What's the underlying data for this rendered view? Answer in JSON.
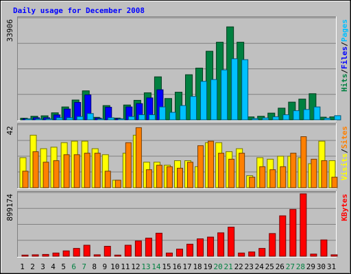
{
  "chart_data": {
    "type": "bar",
    "title": "Daily usage for December 2008",
    "days": [
      "1",
      "2",
      "3",
      "4",
      "5",
      "6",
      "7",
      "8",
      "9",
      "10",
      "11",
      "12",
      "13",
      "14",
      "15",
      "16",
      "17",
      "18",
      "19",
      "20",
      "21",
      "22",
      "23",
      "24",
      "25",
      "26",
      "27",
      "28",
      "29",
      "30",
      "31"
    ],
    "weekend_days": [
      "6",
      "7",
      "13",
      "14",
      "20",
      "21",
      "27",
      "28"
    ],
    "panels": [
      {
        "id": "hits_files_pages",
        "max_label": "33906",
        "ylim": [
          0,
          33906
        ],
        "legend": [
          {
            "text": "Pages",
            "color": "#00c0ff"
          },
          {
            "text": "/",
            "color": "#000000"
          },
          {
            "text": "Files",
            "color": "#0000ff"
          },
          {
            "text": "/",
            "color": "#000000"
          },
          {
            "text": "Hits",
            "color": "#008040"
          }
        ],
        "series": [
          {
            "name": "Hits",
            "color": "#008040",
            "values": [
              550,
              1200,
              1350,
              2350,
              4300,
              6600,
              9650,
              850,
              4750,
              600,
              4950,
              6500,
              9000,
              14300,
              7100,
              9200,
              15000,
              17200,
              22800,
              25800,
              30900,
              25800,
              990,
              1200,
              2250,
              3900,
              5900,
              6900,
              8700,
              900,
              1000
            ]
          },
          {
            "name": "Files",
            "color": "#0000ff",
            "values": [
              350,
              700,
              700,
              1650,
              3600,
              5800,
              8300,
              600,
              4200,
              400,
              4300,
              5400,
              7300,
              10000,
              0,
              0,
              0,
              0,
              0,
              0,
              0,
              0,
              0,
              0,
              0,
              0,
              0,
              0,
              0,
              0,
              0
            ]
          },
          {
            "name": "Pages",
            "color": "#00c0ff",
            "values": [
              350,
              350,
              350,
              700,
              700,
              1100,
              2100,
              350,
              700,
              350,
              1100,
              1700,
              1700,
              4300,
              2500,
              4750,
              7800,
              12800,
              13400,
              16600,
              20300,
              20000,
              450,
              650,
              1050,
              1700,
              3050,
              3450,
              4300,
              550,
              1400
            ]
          }
        ]
      },
      {
        "id": "visits_sites",
        "max_label": "42",
        "ylim": [
          0,
          42
        ],
        "legend": [
          {
            "text": "Sites",
            "color": "#ff8000"
          },
          {
            "text": "/",
            "color": "#000000"
          },
          {
            "text": "Visits",
            "color": "#ffff00"
          }
        ],
        "series": [
          {
            "name": "Visits",
            "color": "#ffff00",
            "values": [
              20,
              35,
              26,
              27,
              30,
              31,
              31,
              26,
              22,
              5,
              23,
              35,
              17,
              17,
              15,
              18,
              18,
              14,
              30,
              30,
              24,
              26,
              8,
              20,
              19,
              21,
              21,
              20,
              16,
              31,
              18
            ]
          },
          {
            "name": "Sites",
            "color": "#ff8000",
            "values": [
              11,
              24,
              17,
              18,
              22,
              22,
              23,
              23,
              11,
              5,
              30,
              40,
              12,
              15,
              14,
              13,
              17,
              28,
              31,
              23,
              19,
              23,
              7,
              14,
              12,
              14,
              23,
              34,
              19,
              18,
              7
            ]
          }
        ]
      },
      {
        "id": "kbytes",
        "max_label": "899174",
        "ylim": [
          0,
          899174
        ],
        "legend": [
          {
            "text": "KBytes",
            "color": "#ff0000"
          }
        ],
        "series": [
          {
            "name": "KBytes",
            "color": "#ff0000",
            "values": [
              16000,
              20000,
              25000,
              45000,
              75000,
              110000,
              155000,
              20000,
              140000,
              16000,
              155000,
              215000,
              255000,
              325000,
              45000,
              100000,
              170000,
              245000,
              270000,
              330000,
              410000,
              45000,
              60000,
              110000,
              320000,
              570000,
              660000,
              880000,
              30000,
              230000,
              20000
            ]
          }
        ]
      }
    ]
  }
}
